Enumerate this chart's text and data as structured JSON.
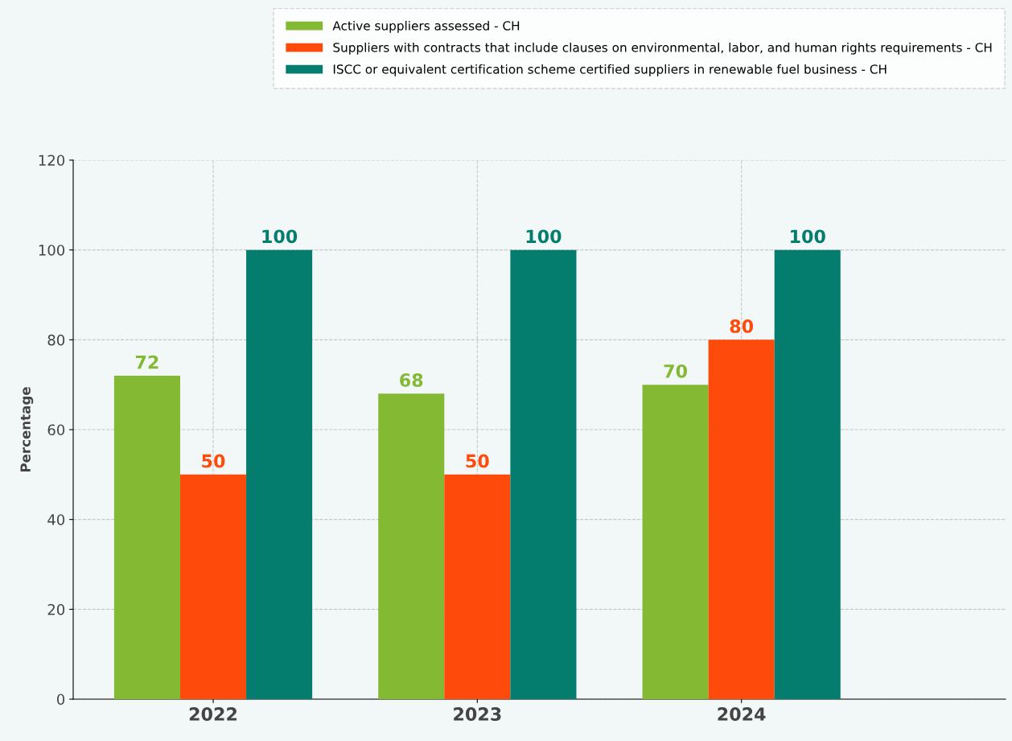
{
  "chart_data": {
    "type": "bar",
    "ylabel": "Percentage",
    "categories": [
      "2022",
      "2023",
      "2024"
    ],
    "series": [
      {
        "name": "Active suppliers assessed - CH",
        "color": "#84b934",
        "values": [
          72,
          68,
          70
        ]
      },
      {
        "name": "Suppliers with contracts that include clauses on environmental, labor, and human rights requirements - CH",
        "color": "#fe4a0a",
        "values": [
          50,
          50,
          80
        ]
      },
      {
        "name": "ISCC or equivalent certification scheme certified suppliers in renewable fuel business - CH",
        "color": "#047d6e",
        "values": [
          100,
          100,
          100
        ]
      }
    ],
    "ylim": [
      0,
      120
    ],
    "yticks": [
      0,
      20,
      40,
      60,
      80,
      100,
      120
    ],
    "grid": true,
    "legend": "top right",
    "data_labels": true
  }
}
